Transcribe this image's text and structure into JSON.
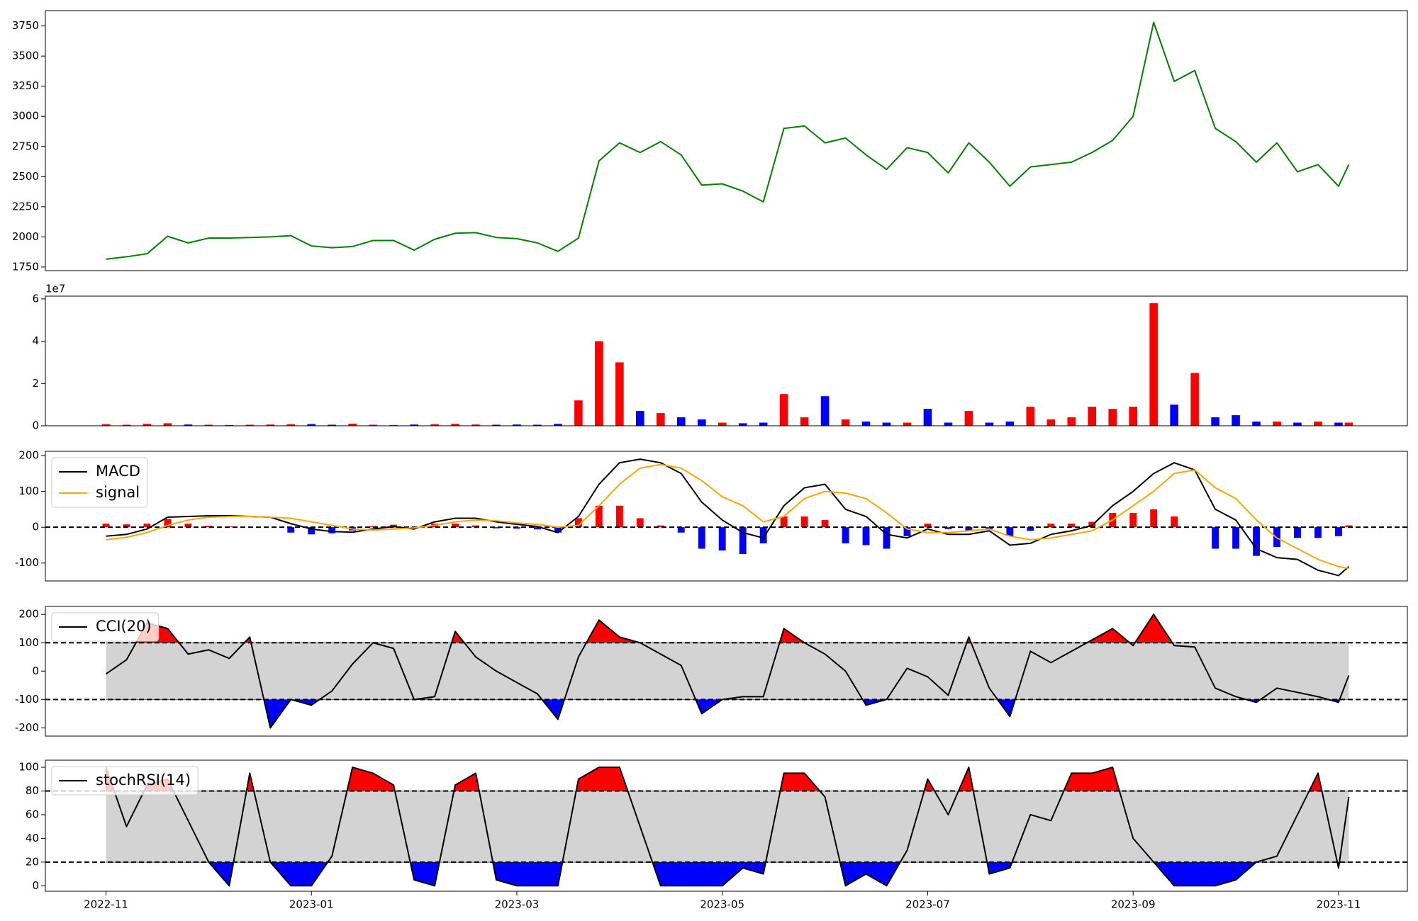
{
  "chart_data": [
    {
      "type": "line",
      "color": "green",
      "values": [
        1815,
        1835,
        1860,
        2005,
        1950,
        1990,
        1990,
        1995,
        2000,
        2010,
        1925,
        1910,
        1920,
        1970,
        1970,
        1890,
        1980,
        2030,
        2035,
        1995,
        1985,
        1950,
        1880,
        1990,
        2630,
        2780,
        2700,
        2790,
        2680,
        2430,
        2440,
        2380,
        2290,
        2900,
        2920,
        2780,
        2820,
        2680,
        2560,
        2740,
        2700,
        2530,
        2780,
        2620,
        2420,
        2580,
        2600,
        2620,
        2700,
        2800,
        3000,
        3780,
        3290,
        3380,
        2900,
        2790,
        2620,
        2780,
        2540,
        2600,
        2420,
        2600
      ],
      "ylim": [
        1720,
        3877
      ],
      "yticks": [
        1750,
        2000,
        2250,
        2500,
        2750,
        3000,
        3250,
        3500,
        3750
      ]
    },
    {
      "type": "bar",
      "up_color": "red",
      "down_color": "blue",
      "y_offset_label": "1e7",
      "values": [
        700000,
        500000,
        900000,
        1200000,
        600000,
        500000,
        400000,
        500000,
        600000,
        700000,
        800000,
        500000,
        1000000,
        500000,
        400000,
        600000,
        700000,
        900000,
        600000,
        500000,
        600000,
        500000,
        900000,
        12000000,
        40000000,
        30000000,
        7000000,
        6000000,
        4000000,
        3000000,
        1500000,
        1200000,
        1500000,
        15000000,
        4000000,
        14000000,
        3000000,
        2000000,
        1500000,
        1500000,
        8000000,
        1500000,
        7000000,
        1500000,
        2000000,
        9000000,
        3000000,
        4000000,
        9000000,
        8000000,
        9000000,
        58000000,
        10000000,
        25000000,
        4000000,
        5000000,
        2000000,
        2000000,
        1500000,
        2000000,
        1500000,
        1500000
      ],
      "ylim": [
        0,
        61300000
      ],
      "yticks": [
        0,
        {
          "value": 20000000,
          "label": "2"
        },
        {
          "value": 40000000,
          "label": "4"
        },
        {
          "value": 60000000,
          "label": "6"
        }
      ]
    },
    {
      "type": "line",
      "legend": "upper left",
      "levels": [
        0
      ],
      "series": [
        {
          "name": "MACD",
          "color": "black",
          "values": [
            -25,
            -20,
            -5,
            28,
            30,
            32,
            32,
            30,
            28,
            10,
            -5,
            -12,
            -14,
            -5,
            2,
            -5,
            15,
            25,
            25,
            15,
            8,
            2,
            -15,
            30,
            120,
            180,
            190,
            180,
            150,
            70,
            20,
            -15,
            -30,
            60,
            110,
            120,
            50,
            30,
            -20,
            -30,
            -5,
            -20,
            -20,
            -10,
            -50,
            -45,
            -20,
            -10,
            5,
            60,
            100,
            150,
            180,
            160,
            50,
            20,
            -60,
            -85,
            -90,
            -120,
            -135,
            -110
          ]
        },
        {
          "name": "signal",
          "color": "orange",
          "values": [
            -35,
            -28,
            -15,
            5,
            20,
            28,
            30,
            30,
            28,
            25,
            15,
            5,
            -5,
            -8,
            -5,
            -2,
            5,
            15,
            20,
            18,
            12,
            8,
            0,
            5,
            60,
            120,
            165,
            175,
            165,
            130,
            85,
            60,
            15,
            30,
            80,
            100,
            95,
            80,
            40,
            -5,
            -15,
            -15,
            -10,
            -5,
            -25,
            -35,
            -30,
            -20,
            -10,
            20,
            60,
            100,
            150,
            160,
            110,
            80,
            20,
            -30,
            -60,
            -90,
            -110,
            -115
          ]
        }
      ],
      "histogram": [
        10,
        8,
        10,
        23,
        10,
        4,
        2,
        0,
        0,
        -15,
        -20,
        -17,
        -9,
        3,
        7,
        -3,
        10,
        10,
        5,
        -3,
        -4,
        -6,
        -15,
        25,
        60,
        60,
        25,
        5,
        -15,
        -60,
        -65,
        -75,
        -45,
        30,
        30,
        20,
        -45,
        -50,
        -60,
        -25,
        10,
        -5,
        -10,
        -5,
        -25,
        -10,
        10,
        10,
        15,
        40,
        40,
        50,
        30,
        0,
        -60,
        -60,
        -80,
        -55,
        -30,
        -30,
        -25,
        5
      ],
      "histogram_up_color": "red",
      "histogram_down_color": "blue",
      "ylim": [
        -150,
        212
      ],
      "yticks": [
        -100,
        0,
        100,
        200
      ]
    },
    {
      "type": "line",
      "legend": "upper left",
      "levels": [
        -100,
        100
      ],
      "band_color": "#d3d3d3",
      "upper_fill": "red",
      "lower_fill": "blue",
      "series": [
        {
          "name": "CCI(20)",
          "color": "black",
          "values": [
            -10,
            40,
            170,
            150,
            60,
            75,
            45,
            120,
            -200,
            -100,
            -120,
            -70,
            25,
            100,
            80,
            -100,
            -90,
            140,
            50,
            0,
            -40,
            -80,
            -170,
            50,
            180,
            120,
            100,
            60,
            20,
            -150,
            -100,
            -90,
            -90,
            150,
            100,
            60,
            0,
            -120,
            -100,
            10,
            -20,
            -85,
            120,
            -60,
            -160,
            70,
            30,
            70,
            110,
            150,
            90,
            200,
            90,
            85,
            -60,
            -90,
            -110,
            -60,
            -75,
            -90,
            -110,
            -15
          ]
        }
      ],
      "ylim": [
        -229,
        228
      ],
      "yticks": [
        -200,
        -100,
        0,
        100,
        200
      ]
    },
    {
      "type": "line",
      "legend": "upper left",
      "levels": [
        20,
        80
      ],
      "band_color": "#d3d3d3",
      "upper_fill": "red",
      "lower_fill": "blue",
      "series": [
        {
          "name": "stochRSI(14)",
          "color": "black",
          "values": [
            100,
            50,
            85,
            90,
            55,
            20,
            0,
            95,
            20,
            0,
            0,
            25,
            100,
            95,
            85,
            5,
            0,
            85,
            95,
            5,
            0,
            0,
            0,
            90,
            100,
            100,
            50,
            0,
            0,
            0,
            0,
            15,
            10,
            95,
            95,
            75,
            0,
            10,
            0,
            30,
            90,
            60,
            100,
            10,
            15,
            60,
            55,
            95,
            95,
            100,
            40,
            20,
            0,
            0,
            0,
            5,
            20,
            25,
            60,
            95,
            15,
            75
          ]
        }
      ],
      "x": [
        0,
        0.2,
        0.4,
        0.6,
        0.8,
        1,
        1.2,
        1.4,
        1.6,
        1.8,
        2,
        2.2,
        2.4,
        2.6,
        2.8,
        3,
        3.2,
        3.4,
        3.6,
        3.8,
        4,
        4.2,
        4.4,
        4.6,
        4.8,
        5,
        5.2,
        5.4,
        5.6,
        5.8,
        6,
        6.2,
        6.4,
        6.6,
        6.8,
        7,
        7.2,
        7.4,
        7.6,
        7.8,
        8,
        8.2,
        8.4,
        8.6,
        8.8,
        9,
        9.2,
        9.4,
        9.6,
        9.8,
        10,
        10.2,
        10.4,
        10.6,
        10.8,
        11,
        11.2,
        11.4,
        11.6,
        11.8,
        12,
        12.1
      ],
      "xlim": [
        -0.59,
        12.67
      ],
      "xticks": [
        {
          "value": 0,
          "label": "2022-11"
        },
        {
          "value": 2,
          "label": "2023-01"
        },
        {
          "value": 4,
          "label": "2023-03"
        },
        {
          "value": 6,
          "label": "2023-05"
        },
        {
          "value": 8,
          "label": "2023-07"
        },
        {
          "value": 10,
          "label": "2023-09"
        },
        {
          "value": 12,
          "label": "2023-11"
        }
      ],
      "ylim": [
        -4.6,
        106
      ],
      "yticks": [
        0,
        20,
        40,
        60,
        80,
        100
      ]
    }
  ]
}
